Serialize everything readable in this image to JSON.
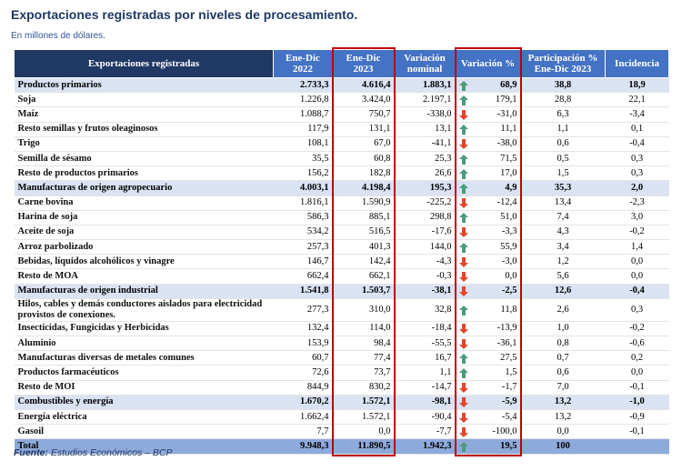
{
  "header": {
    "title": "Exportaciones registradas por niveles de procesamiento.",
    "subtitle": "En millones de dólares."
  },
  "table": {
    "columns": [
      "Exportaciones registradas",
      "Ene-Dic 2022",
      "Ene-Dic 2023",
      "Variación nominal",
      "Variación %",
      "Participación % Ene-Dic 2023",
      "Incidencia"
    ],
    "rows": [
      {
        "level": "group",
        "label": "Productos primarios",
        "values": [
          "2.733,3",
          "4.616,4",
          "1.883,1",
          "68,9",
          "38,8",
          "18,9"
        ]
      },
      {
        "level": "item",
        "label": "Soja",
        "values": [
          "1.226,8",
          "3.424,0",
          "2.197,1",
          "179,1",
          "28,8",
          "22,1"
        ]
      },
      {
        "level": "item",
        "label": "Maíz",
        "values": [
          "1.088,7",
          "750,7",
          "-338,0",
          "-31,0",
          "6,3",
          "-3,4"
        ]
      },
      {
        "level": "item",
        "label": "Resto semillas y frutos oleaginosos",
        "values": [
          "117,9",
          "131,1",
          "13,1",
          "11,1",
          "1,1",
          "0,1"
        ]
      },
      {
        "level": "item",
        "label": "Trigo",
        "values": [
          "108,1",
          "67,0",
          "-41,1",
          "-38,0",
          "0,6",
          "-0,4"
        ]
      },
      {
        "level": "item",
        "label": "Semilla de sésamo",
        "values": [
          "35,5",
          "60,8",
          "25,3",
          "71,5",
          "0,5",
          "0,3"
        ]
      },
      {
        "level": "item",
        "label": "Resto de productos primarios",
        "values": [
          "156,2",
          "182,8",
          "26,6",
          "17,0",
          "1,5",
          "0,3"
        ]
      },
      {
        "level": "group",
        "label": "Manufacturas de origen agropecuario",
        "values": [
          "4.003,1",
          "4.198,4",
          "195,3",
          "4,9",
          "35,3",
          "2,0"
        ]
      },
      {
        "level": "item",
        "label": "Carne bovina",
        "values": [
          "1.816,1",
          "1.590,9",
          "-225,2",
          "-12,4",
          "13,4",
          "-2,3"
        ]
      },
      {
        "level": "item",
        "label": "Harina de soja",
        "values": [
          "586,3",
          "885,1",
          "298,8",
          "51,0",
          "7,4",
          "3,0"
        ]
      },
      {
        "level": "item",
        "label": "Aceite de soja",
        "values": [
          "534,2",
          "516,5",
          "-17,6",
          "-3,3",
          "4,3",
          "-0,2"
        ]
      },
      {
        "level": "item",
        "label": "Arroz parbolizado",
        "values": [
          "257,3",
          "401,3",
          "144,0",
          "55,9",
          "3,4",
          "1,4"
        ]
      },
      {
        "level": "item",
        "label": "Bebidas, líquidos alcohólicos y vinagre",
        "values": [
          "146,7",
          "142,4",
          "-4,3",
          "-3,0",
          "1,2",
          "0,0"
        ]
      },
      {
        "level": "item",
        "label": "Resto de MOA",
        "values": [
          "662,4",
          "662,1",
          "-0,3",
          "0,0",
          "5,6",
          "0,0"
        ]
      },
      {
        "level": "group",
        "label": "Manufacturas de origen industrial",
        "values": [
          "1.541,8",
          "1.503,7",
          "-38,1",
          "-2,5",
          "12,6",
          "-0,4"
        ]
      },
      {
        "level": "item",
        "label": "Hilos, cables y demás conductores aislados para electricidad provistos de conexiones.",
        "values": [
          "277,3",
          "310,0",
          "32,8",
          "11,8",
          "2,6",
          "0,3"
        ]
      },
      {
        "level": "item",
        "label": "Insecticidas, Fungicidas y Herbicidas",
        "values": [
          "132,4",
          "114,0",
          "-18,4",
          "-13,9",
          "1,0",
          "-0,2"
        ]
      },
      {
        "level": "item",
        "label": "Aluminio",
        "values": [
          "153,9",
          "98,4",
          "-55,5",
          "-36,1",
          "0,8",
          "-0,6"
        ]
      },
      {
        "level": "item",
        "label": "Manufacturas diversas de metales comunes",
        "values": [
          "60,7",
          "77,4",
          "16,7",
          "27,5",
          "0,7",
          "0,2"
        ]
      },
      {
        "level": "item",
        "label": "Productos farmacéuticos",
        "values": [
          "72,6",
          "73,7",
          "1,1",
          "1,5",
          "0,6",
          "0,0"
        ]
      },
      {
        "level": "item",
        "label": "Resto de MOI",
        "values": [
          "844,9",
          "830,2",
          "-14,7",
          "-1,7",
          "7,0",
          "-0,1"
        ]
      },
      {
        "level": "group",
        "label": "Combustibles y energía",
        "values": [
          "1.670,2",
          "1.572,1",
          "-98,1",
          "-5,9",
          "13,2",
          "-1,0"
        ]
      },
      {
        "level": "item",
        "label": "Energía eléctrica",
        "values": [
          "1.662,4",
          "1.572,1",
          "-90,4",
          "-5,4",
          "13,2",
          "-0,9"
        ]
      },
      {
        "level": "item",
        "label": "Gasoil",
        "values": [
          "7,7",
          "0,0",
          "-7,7",
          "-100,0",
          "0,0",
          "-0,1"
        ]
      },
      {
        "level": "total",
        "label": "Total",
        "values": [
          "9.948,3",
          "11.890,5",
          "1.942,3",
          "19,5",
          "100"
        ]
      }
    ],
    "highlighted_columns": [
      2,
      4
    ]
  },
  "footer": {
    "source_label": "Fuente:",
    "source": "Estudios Económicos – BCP"
  }
}
